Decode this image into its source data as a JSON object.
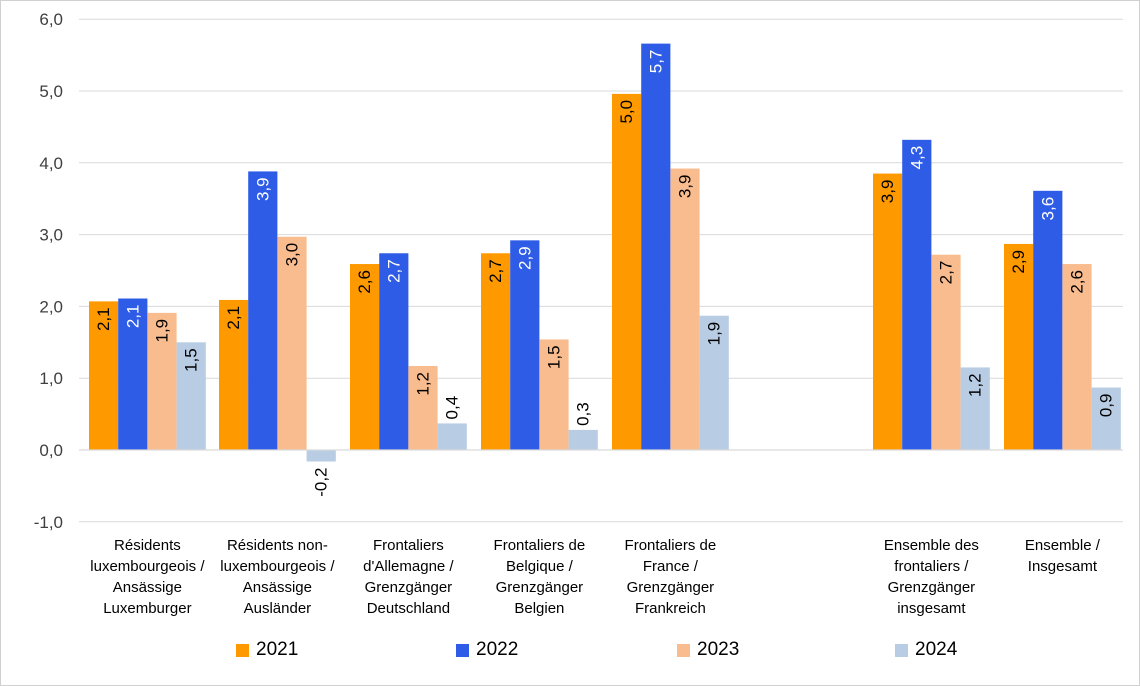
{
  "chart_data": {
    "type": "bar",
    "ylim": [
      -1,
      6
    ],
    "yticks": [
      "-1,0",
      "0,0",
      "1,0",
      "2,0",
      "3,0",
      "4,0",
      "5,0",
      "6,0"
    ],
    "grid": true,
    "legend_position": "bottom",
    "categories": [
      [
        "Résidents",
        "luxembourgeois /",
        "Ansässige",
        "Luxemburger"
      ],
      [
        "Résidents non-",
        "luxembourgeois /",
        "Ansässige",
        "Ausländer"
      ],
      [
        "Frontaliers",
        "d'Allemagne /",
        "Grenzgänger",
        "Deutschland"
      ],
      [
        "Frontaliers de",
        "Belgique /",
        "Grenzgänger",
        "Belgien"
      ],
      [
        "Frontaliers de",
        "France /",
        "Grenzgänger",
        "Frankreich"
      ],
      [
        "Ensemble des",
        "frontaliers /",
        "Grenzgänger",
        "insgesamt"
      ],
      [
        "Ensemble /",
        "Insgesamt"
      ]
    ],
    "series": [
      {
        "name": "2021",
        "color": "#FF9900",
        "values": [
          2.07,
          2.09,
          2.59,
          2.74,
          4.96,
          3.85,
          2.87
        ],
        "labels": [
          "2,1",
          "2,1",
          "2,6",
          "2,7",
          "5,0",
          "3,9",
          "2,9"
        ]
      },
      {
        "name": "2022",
        "color": "#2E5CE6",
        "values": [
          2.11,
          3.88,
          2.74,
          2.92,
          5.66,
          4.32,
          3.61
        ],
        "labels": [
          "2,1",
          "3,9",
          "2,7",
          "2,9",
          "5,7",
          "4,3",
          "3,6"
        ]
      },
      {
        "name": "2023",
        "color": "#F9BC8F",
        "values": [
          1.91,
          2.97,
          1.17,
          1.54,
          3.92,
          2.72,
          2.59
        ],
        "labels": [
          "1,9",
          "3,0",
          "1,2",
          "1,5",
          "3,9",
          "2,7",
          "2,6"
        ]
      },
      {
        "name": "2024",
        "color": "#B8CCE4",
        "values": [
          1.5,
          -0.16,
          0.37,
          0.28,
          1.87,
          1.15,
          0.87
        ],
        "labels": [
          "1,5",
          "-0,2",
          "0,4",
          "0,3",
          "1,9",
          "1,2",
          "0,9"
        ]
      }
    ]
  }
}
